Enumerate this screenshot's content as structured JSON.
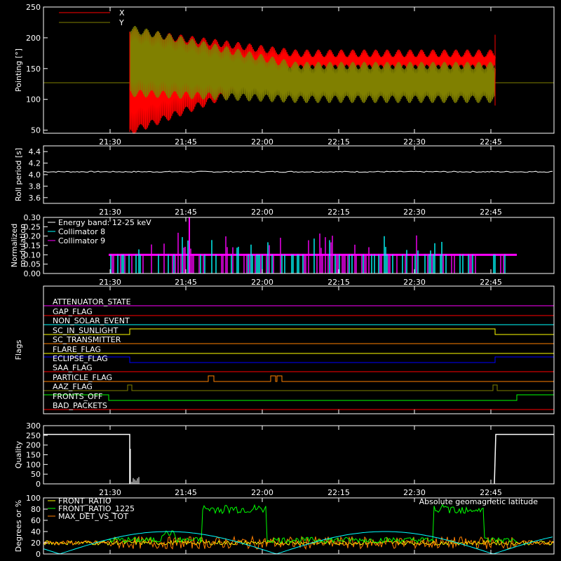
{
  "time_ticks": [
    "21:30",
    "21:45",
    "22:00",
    "22:15",
    "22:30",
    "22:45"
  ],
  "colors": {
    "x": "#ff0000",
    "y": "#808000",
    "white": "#ffffff",
    "cyan": "#00ffff",
    "magenta": "#ff00ff",
    "green": "#00ff00",
    "orange": "#ff8000",
    "yellow": "#ffff00",
    "blue": "#0000ff"
  },
  "chart_data": [
    {
      "type": "line",
      "ylabel": "Pointing [°]",
      "ylim": [
        45,
        250
      ],
      "yticks": [
        "50",
        "100",
        "150",
        "200",
        "250"
      ],
      "legend": [
        "X",
        "Y"
      ],
      "series": [
        {
          "name": "X",
          "baseline": 127,
          "oscillation_start_min": [
            47,
            210
          ],
          "oscillation_end_min": [
            150,
            175
          ]
        },
        {
          "name": "Y",
          "baseline": 127,
          "oscillation_start_min": [
            110,
            215
          ],
          "oscillation_end_min": [
            100,
            155
          ]
        }
      ]
    },
    {
      "type": "line",
      "ylabel": "Roll period [s]",
      "ylim": [
        3.5,
        4.5
      ],
      "yticks": [
        "3.6",
        "3.8",
        "4.0",
        "4.2",
        "4.4"
      ],
      "series": [
        {
          "name": "Roll period",
          "typical_value": 4.05
        }
      ]
    },
    {
      "type": "bar",
      "ylabel": "Normalized modulation",
      "ylim": [
        0,
        0.3
      ],
      "yticks": [
        "0.00",
        "0.05",
        "0.10",
        "0.15",
        "0.20",
        "0.25",
        "0.30"
      ],
      "annotation": "Energy band: 12-25 keV",
      "legend": [
        "Collimator 8",
        "Collimator 9"
      ],
      "series": [
        {
          "name": "Collimator 8",
          "typical_value": 0.1
        },
        {
          "name": "Collimator 9",
          "typical_value": 0.1
        }
      ]
    },
    {
      "type": "line",
      "ylabel": "Flags",
      "flags": [
        {
          "name": "ATTENUATOR_STATE",
          "color": "#ff00ff"
        },
        {
          "name": "GAP_FLAG",
          "color": "#ff0000"
        },
        {
          "name": "NON_SOLAR_EVENT",
          "color": "#00ffff"
        },
        {
          "name": "SC_IN_SUNLIGHT",
          "color": "#ffff00"
        },
        {
          "name": "SC_TRANSMITTER",
          "color": "#ff8000"
        },
        {
          "name": "FLARE_FLAG",
          "color": "#ffff00"
        },
        {
          "name": "ECLIPSE_FLAG",
          "color": "#0000ff"
        },
        {
          "name": "SAA_FLAG",
          "color": "#ff0000"
        },
        {
          "name": "PARTICLE_FLAG",
          "color": "#ff8000"
        },
        {
          "name": "AAZ_FLAG",
          "color": "#808000"
        },
        {
          "name": "FRONTS_OFF",
          "color": "#00ff00"
        },
        {
          "name": "BAD_PACKETS",
          "color": "#ff0000"
        }
      ]
    },
    {
      "type": "line",
      "ylabel": "Quality",
      "ylim": [
        0,
        300
      ],
      "yticks": [
        "0",
        "50",
        "100",
        "150",
        "200",
        "250",
        "300"
      ],
      "series": [
        {
          "name": "Quality",
          "high_value": 255
        }
      ]
    },
    {
      "type": "line",
      "ylabel": "Degrees or %",
      "ylim": [
        0,
        100
      ],
      "yticks": [
        "0",
        "20",
        "40",
        "60",
        "80",
        "100"
      ],
      "legend": [
        "FRONT_RATIO",
        "FRONT_RATIO_1225",
        "MAX_DET_VS_TOT",
        "Absolute geomagnetic latitude"
      ],
      "series": [
        {
          "name": "FRONT_RATIO",
          "typical_value": 20
        },
        {
          "name": "FRONT_RATIO_1225",
          "typical_value": 25,
          "high_value": 80
        },
        {
          "name": "MAX_DET_VS_TOT",
          "typical_value": 20
        },
        {
          "name": "Absolute geomagnetic latitude",
          "range": [
            0,
            40
          ]
        }
      ]
    }
  ]
}
